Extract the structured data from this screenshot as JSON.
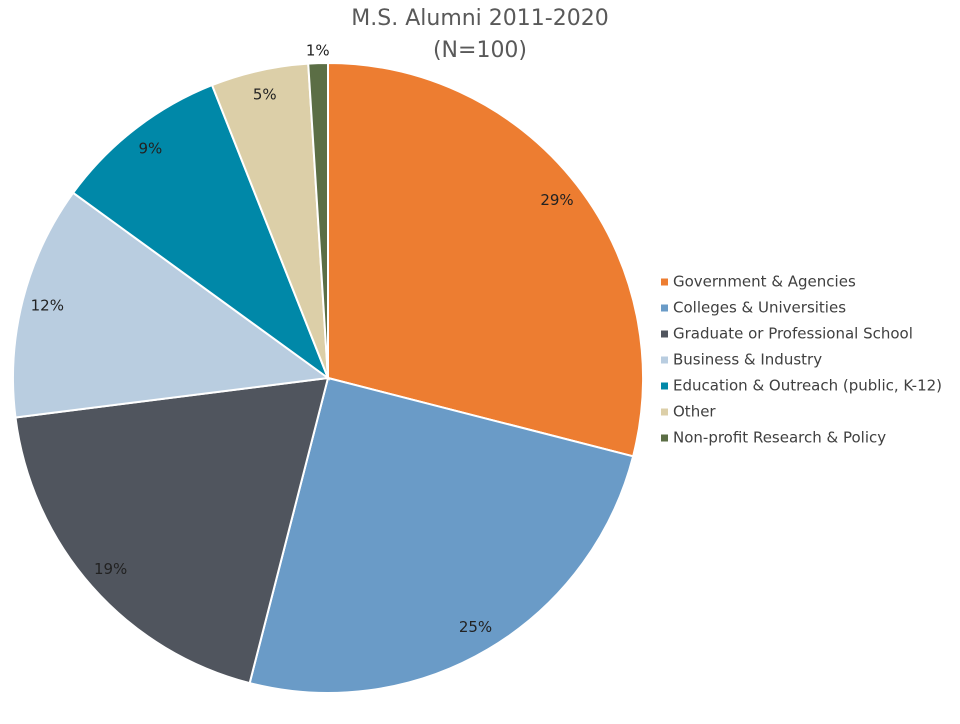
{
  "chart_data": {
    "type": "pie",
    "title": "M.S. Alumni 2011-2020",
    "subtitle": "(N=100)",
    "categories": [
      "Government & Agencies",
      "Colleges & Universities",
      "Graduate or Professional School",
      "Business & Industry",
      "Education & Outreach (public, K-12)",
      "Other",
      "Non-profit Research & Policy"
    ],
    "values": [
      29,
      25,
      19,
      12,
      9,
      5,
      1
    ],
    "value_labels": [
      "29%",
      "25%",
      "19%",
      "12%",
      "9%",
      "5%",
      "1%"
    ],
    "colors": [
      "#ed7d31",
      "#6a9bc7",
      "#50555e",
      "#b9cde0",
      "#0088a8",
      "#dccfa8",
      "#5b6e45"
    ],
    "legend": "right"
  }
}
